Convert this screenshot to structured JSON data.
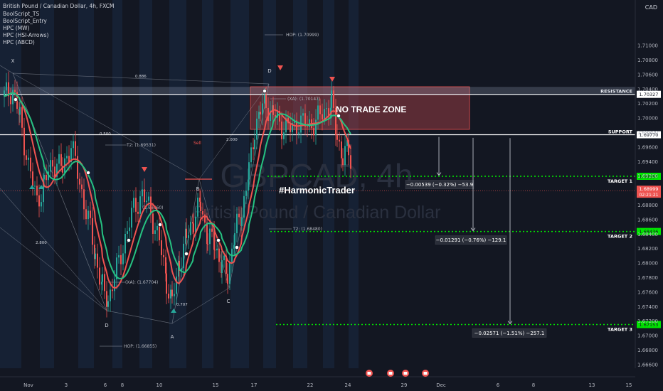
{
  "header": {
    "title": "British Pound / Canadian Dollar, 4h, FXCM",
    "indicators": [
      "BoolScript_TS",
      "BoolScript_Entry",
      "HPC (MW)",
      "HPC (HSI-Arrows)",
      "HPC (ABCD)"
    ],
    "currency": "CAD"
  },
  "watermark": {
    "symbol": "GBPCAD, 4h",
    "name": "British Pound / Canadian Dollar"
  },
  "hashtag": "#HarmonicTrader",
  "zone_label": "NO TRADE ZONE",
  "colors": {
    "up": "#26a69a",
    "down": "#ef5350",
    "bg": "#131722",
    "target": "#00e600",
    "zone": "#b2444c"
  },
  "chart_data": {
    "type": "candlestick",
    "symbol": "GBPCAD",
    "timeframe": "4h",
    "y_range": [
      1.6655,
      1.7153
    ],
    "price_ticks": [
      "1.71000",
      "1.70800",
      "1.70600",
      "1.70400",
      "1.70200",
      "1.70000",
      "1.69800",
      "1.69600",
      "1.69400",
      "1.69200",
      "1.69000",
      "1.68800",
      "1.68600",
      "1.68400",
      "1.68200",
      "1.68000",
      "1.67800",
      "1.67600",
      "1.67400",
      "1.67200",
      "1.67000",
      "1.66800",
      "1.66600"
    ],
    "x_ticks": [
      "Nov",
      "3",
      "6",
      "8",
      "10",
      "15",
      "17",
      "22",
      "24",
      "29",
      "Dec",
      "6",
      "8",
      "13",
      "15"
    ],
    "levels": [
      {
        "label": "RESISTANCE",
        "value": 1.70327,
        "axis_text": "1.70327"
      },
      {
        "label": "SUPPORT",
        "value": 1.6977,
        "axis_text": "1.69770"
      },
      {
        "label": "TARGET 1",
        "value": 1.69197,
        "axis_text": "1.69197"
      },
      {
        "label": "TARGET 2",
        "value": 1.68436,
        "axis_text": "1.68436"
      },
      {
        "label": "TARGET 3",
        "value": 1.67153,
        "axis_text": "1.67153"
      }
    ],
    "current_price": {
      "value": 1.68999,
      "text": "1.68999",
      "countdown": "02:21:21"
    },
    "axis_top_label": "1.70400",
    "measurements": [
      {
        "text": "−0.00539 (−0.32%) −53.9",
        "from": 1.6974,
        "to": 1.69201
      },
      {
        "text": "−0.01291 (−0.76%) −129.1",
        "from": 1.69727,
        "to": 1.68436
      },
      {
        "text": "−0.02571 (−1.51%) −257.1",
        "from": 1.69724,
        "to": 1.67153
      }
    ],
    "pattern_points": {
      "X": "X",
      "D1": "D",
      "A": "A",
      "B": "B",
      "C": "C",
      "D2": "D"
    },
    "pattern_texts": {
      "hop_top": "HOP: (1.70999)",
      "hop_bottom": "HOP: (1.66855)",
      "xa_top": "(XA): (1.70147)",
      "xa_bottom": "(XA): (1.67704)",
      "t2_top": "T2: (1.69531)",
      "t2_bottom": "T2: (1.68480)",
      "mid": "(1.68660)",
      "ratio_886": "0.886",
      "ratio_500": "0.500",
      "ratio_2000": "2.000",
      "ratio_2800": "2.800",
      "ratio_707": "0.707",
      "sell_tag": "Sell"
    }
  }
}
